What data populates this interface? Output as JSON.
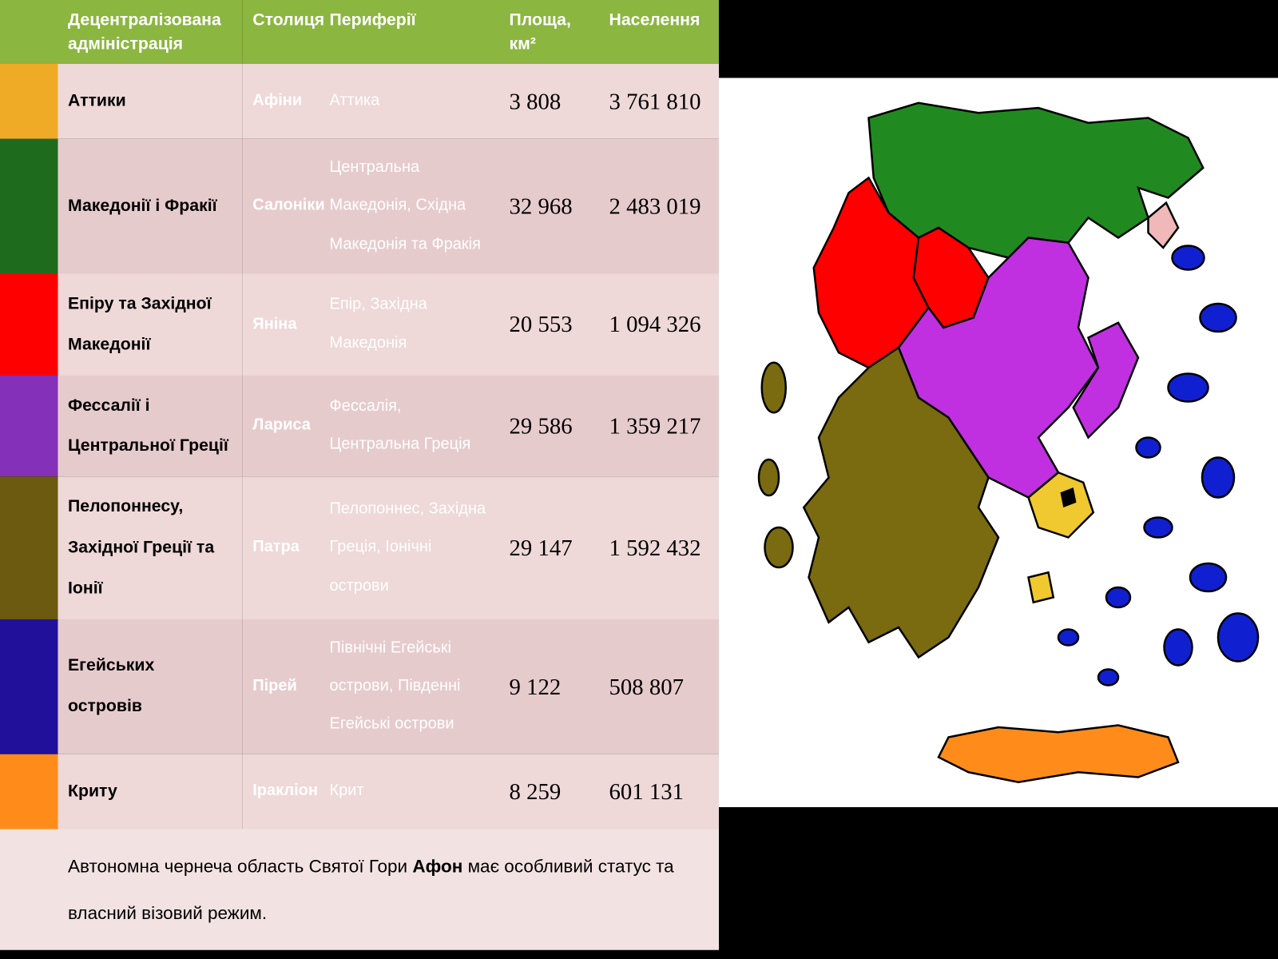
{
  "table": {
    "header_bg": "#8bb63f",
    "row_bg": "#eed8d8",
    "row_bg_alt": "#e6cbcd",
    "foot_bg": "#f2e2e2",
    "columns": {
      "admin": "Децентралізована адміністрація",
      "capital": "Столиця",
      "periphery": "Периферії",
      "area": "Площа, км²",
      "population": "Населення"
    },
    "rows": [
      {
        "swatch": "#f0ab26",
        "admin": "Аттики",
        "capital": "Афіни",
        "periphery": "Аттика",
        "area": "3 808",
        "population": "3 761 810"
      },
      {
        "swatch": "#1e6b1e",
        "admin": "Македонії і Фракії",
        "capital": "Салоніки",
        "periphery": "Центральна Македонія, Східна Македонія та Фракія",
        "area": "32 968",
        "population": "2 483 019"
      },
      {
        "swatch": "#ff0000",
        "admin": "Епіру та Західної Македонії",
        "capital": "Яніна",
        "periphery": "Епір, Західна Македонія",
        "area": "20 553",
        "population": "1 094 326"
      },
      {
        "swatch": "#8430b8",
        "admin": "Фессалії і Центральної Греції",
        "capital": "Лариса",
        "periphery": "Фессалія, Центральна Греція",
        "area": "29 586",
        "population": "1 359 217"
      },
      {
        "swatch": "#6b5a10",
        "admin": "Пелопоннесу, Західної Греції та Іонії",
        "capital": "Патра",
        "periphery": "Пелопоннес, Західна Греція, Іонічні острови",
        "area": "29 147",
        "population": "1 592 432"
      },
      {
        "swatch": "#20109a",
        "admin": "Егейських островів",
        "capital": "Пірей",
        "periphery": "Північні Егейські острови, Південні Егейські острови",
        "area": "9 122",
        "population": "508 807"
      },
      {
        "swatch": "#ff8c1a",
        "admin": "Криту",
        "capital": "Іракліон",
        "periphery": "Крит",
        "area": "8 259",
        "population": "601 131"
      }
    ],
    "footnote_pre": "Автономна чернеча область Святої Гори ",
    "footnote_bold": "Афон",
    "footnote_post": " має особливий статус та власний візовий режим."
  },
  "map": {
    "background": "#ffffff",
    "outline": "#000000",
    "colors": {
      "attica": "#f0c830",
      "macedonia_thrace": "#208a20",
      "epirus_wm": "#ff0000",
      "thessaly_cg": "#c030e0",
      "peloponnese": "#7a6a10",
      "aegean": "#1020d0",
      "crete": "#ff8c1a",
      "athos": "#f0b8b8"
    }
  }
}
